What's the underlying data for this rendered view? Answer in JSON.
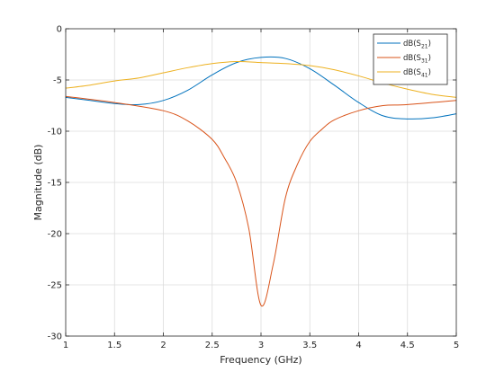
{
  "chart_data": {
    "type": "line",
    "xlabel": "Frequency (GHz)",
    "ylabel": "Magnitude (dB)",
    "xlim": [
      1,
      5
    ],
    "ylim": [
      -30,
      0
    ],
    "xticks": [
      1,
      1.5,
      2,
      2.5,
      3,
      3.5,
      4,
      4.5,
      5
    ],
    "xtick_labels": [
      "1",
      "1.5",
      "2",
      "2.5",
      "3",
      "3.5",
      "4",
      "4.5",
      "5"
    ],
    "yticks": [
      0,
      -5,
      -10,
      -15,
      -20,
      -25,
      -30
    ],
    "ytick_labels": [
      "0",
      "-5",
      "-10",
      "-15",
      "-20",
      "-25",
      "-30"
    ],
    "grid": true,
    "legend_position": "top-right",
    "series": [
      {
        "name": "dB(S21)",
        "legend_main": "dB(S",
        "legend_sub": "21",
        "legend_close": ")",
        "color": "#0072BD",
        "x": [
          1,
          1.25,
          1.5,
          1.75,
          2,
          2.25,
          2.5,
          2.75,
          3,
          3.25,
          3.5,
          3.75,
          4,
          4.25,
          4.5,
          4.75,
          5
        ],
        "y": [
          -6.7,
          -7.0,
          -7.3,
          -7.4,
          -7.0,
          -6.0,
          -4.5,
          -3.3,
          -2.8,
          -2.9,
          -3.9,
          -5.5,
          -7.2,
          -8.5,
          -8.8,
          -8.7,
          -8.3
        ]
      },
      {
        "name": "dB(S31)",
        "legend_main": "dB(S",
        "legend_sub": "31",
        "legend_close": ")",
        "color": "#D95319",
        "x": [
          1,
          1.5,
          2,
          2.25,
          2.5,
          2.625,
          2.75,
          2.875,
          3,
          3.125,
          3.25,
          3.375,
          3.5,
          3.625,
          3.75,
          4,
          4.25,
          4.5,
          5
        ],
        "y": [
          -6.6,
          -7.2,
          -8.0,
          -9.0,
          -10.8,
          -12.6,
          -15.0,
          -19.5,
          -27.0,
          -23.0,
          -16.5,
          -13.2,
          -11.0,
          -9.8,
          -8.9,
          -8.0,
          -7.5,
          -7.4,
          -7.0
        ]
      },
      {
        "name": "dB(S41)",
        "legend_main": "dB(S",
        "legend_sub": "41",
        "legend_close": ")",
        "color": "#EDB120",
        "x": [
          1,
          1.25,
          1.5,
          1.75,
          2,
          2.25,
          2.5,
          2.75,
          3,
          3.25,
          3.5,
          3.75,
          4,
          4.25,
          4.5,
          4.75,
          5
        ],
        "y": [
          -5.8,
          -5.5,
          -5.1,
          -4.8,
          -4.3,
          -3.8,
          -3.4,
          -3.2,
          -3.3,
          -3.4,
          -3.6,
          -4.0,
          -4.6,
          -5.3,
          -5.9,
          -6.4,
          -6.7
        ]
      }
    ]
  }
}
